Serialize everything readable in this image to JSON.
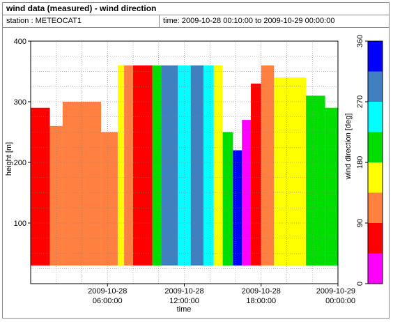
{
  "header": {
    "title": "wind data (measured) - wind direction",
    "station": "station : METEOCAT1",
    "time_range": "time: 2009-10-28 00:10:00 to 2009-10-29 00:00:00"
  },
  "chart_data": {
    "type": "heatmap",
    "title": "wind data (measured) - wind direction",
    "xlabel": "time",
    "ylabel": "height [m]",
    "colorbar_label": "wind direction [deg]",
    "x_ticks": [
      {
        "hours": 6,
        "line1": "2009-10-28",
        "line2": "06:00:00"
      },
      {
        "hours": 12,
        "line1": "2009-10-28",
        "line2": "12:00:00"
      },
      {
        "hours": 18,
        "line1": "2009-10-28",
        "line2": "18:00:00"
      },
      {
        "hours": 24,
        "line1": "2009-10-29",
        "line2": "00:00:00"
      }
    ],
    "xlim_hours": [
      0,
      24
    ],
    "ylim": [
      0,
      400
    ],
    "y_ticks": [
      100,
      200,
      300,
      400
    ],
    "grid": true,
    "colorbar": {
      "ticks": [
        0,
        90,
        180,
        270,
        360
      ],
      "bins": [
        {
          "from": 0,
          "to": 45,
          "color": "#ff00ff"
        },
        {
          "from": 45,
          "to": 90,
          "color": "#ff0000"
        },
        {
          "from": 90,
          "to": 135,
          "color": "#ff8040"
        },
        {
          "from": 135,
          "to": 180,
          "color": "#ffff00"
        },
        {
          "from": 180,
          "to": 225,
          "color": "#00dd00"
        },
        {
          "from": 225,
          "to": 270,
          "color": "#00ffff"
        },
        {
          "from": 270,
          "to": 315,
          "color": "#4080c0"
        },
        {
          "from": 315,
          "to": 360,
          "color": "#0000ff"
        }
      ]
    },
    "data_height_range": [
      30,
      360
    ],
    "segments": [
      {
        "t0": 0.0,
        "t1": 1.5,
        "top": 290,
        "dir": 67
      },
      {
        "t0": 1.5,
        "t1": 2.5,
        "top": 260,
        "dir": 112
      },
      {
        "t0": 2.5,
        "t1": 5.5,
        "top": 300,
        "dir": 112
      },
      {
        "t0": 5.5,
        "t1": 6.8,
        "top": 250,
        "dir": 112
      },
      {
        "t0": 6.8,
        "t1": 7.3,
        "top": 360,
        "dir": 157
      },
      {
        "t0": 7.3,
        "t1": 8.0,
        "top": 360,
        "dir": 112
      },
      {
        "t0": 8.0,
        "t1": 9.5,
        "top": 360,
        "dir": 67
      },
      {
        "t0": 9.5,
        "t1": 10.2,
        "top": 360,
        "dir": 202
      },
      {
        "t0": 10.2,
        "t1": 11.5,
        "top": 360,
        "dir": 292
      },
      {
        "t0": 11.5,
        "t1": 12.5,
        "top": 360,
        "dir": 247
      },
      {
        "t0": 12.5,
        "t1": 13.5,
        "top": 360,
        "dir": 292
      },
      {
        "t0": 13.5,
        "t1": 14.3,
        "top": 360,
        "dir": 247
      },
      {
        "t0": 14.3,
        "t1": 15.0,
        "top": 360,
        "dir": 157
      },
      {
        "t0": 15.0,
        "t1": 15.8,
        "top": 250,
        "dir": 202
      },
      {
        "t0": 15.8,
        "t1": 16.5,
        "top": 220,
        "dir": 337
      },
      {
        "t0": 16.5,
        "t1": 17.2,
        "top": 270,
        "dir": 22
      },
      {
        "t0": 17.2,
        "t1": 18.0,
        "top": 330,
        "dir": 67
      },
      {
        "t0": 18.0,
        "t1": 19.0,
        "top": 360,
        "dir": 112
      },
      {
        "t0": 19.0,
        "t1": 21.5,
        "top": 340,
        "dir": 157
      },
      {
        "t0": 21.5,
        "t1": 23.0,
        "top": 310,
        "dir": 202
      },
      {
        "t0": 23.0,
        "t1": 24.0,
        "top": 290,
        "dir": 202
      }
    ]
  }
}
